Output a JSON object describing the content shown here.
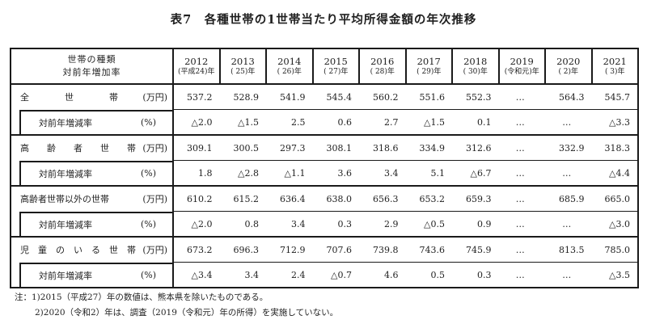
{
  "title": "表7　各種世帯の1世帯当たり平均所得金額の年次推移",
  "table": {
    "header": {
      "label_line1": "世帯の種類",
      "label_line2": "対前年増加率",
      "years": [
        {
          "year": "2012",
          "era": "(平成24)年"
        },
        {
          "year": "2013",
          "era": "( 25)年"
        },
        {
          "year": "2014",
          "era": "( 26)年"
        },
        {
          "year": "2015",
          "era": "( 27)年"
        },
        {
          "year": "2016",
          "era": "( 28)年"
        },
        {
          "year": "2017",
          "era": "( 29)年"
        },
        {
          "year": "2018",
          "era": "( 30)年"
        },
        {
          "year": "2019",
          "era": "(令和元)年"
        },
        {
          "year": "2020",
          "era": "( 2)年"
        },
        {
          "year": "2021",
          "era": "( 3)年"
        }
      ]
    },
    "groups": [
      {
        "label": "全　　　　世　　　　帯",
        "unit": "(万円)",
        "values": [
          "537.2",
          "528.9",
          "541.9",
          "545.4",
          "560.2",
          "551.6",
          "552.3",
          "…",
          "564.3",
          "545.7"
        ],
        "rate_label": "対前年増減率",
        "rate_unit": "(%)",
        "rate_values": [
          "△2.0",
          "△1.5",
          "2.5",
          "0.6",
          "2.7",
          "△1.5",
          "0.1",
          "…",
          "…",
          "△3.3"
        ]
      },
      {
        "label": "高　　齢　　者　　世　　帯",
        "unit": "(万円)",
        "values": [
          "309.1",
          "300.5",
          "297.3",
          "308.1",
          "318.6",
          "334.9",
          "312.6",
          "…",
          "332.9",
          "318.3"
        ],
        "rate_label": "対前年増減率",
        "rate_unit": "(%)",
        "rate_values": [
          "1.8",
          "△2.8",
          "△1.1",
          "3.6",
          "3.4",
          "5.1",
          "△6.7",
          "…",
          "…",
          "△4.4"
        ]
      },
      {
        "label": "高齢者世帯以外の世帯",
        "unit": "(万円)",
        "values": [
          "610.2",
          "615.2",
          "636.4",
          "638.0",
          "656.3",
          "653.2",
          "659.3",
          "…",
          "685.9",
          "665.0"
        ],
        "rate_label": "対前年増減率",
        "rate_unit": "(%)",
        "rate_values": [
          "△2.0",
          "0.8",
          "3.4",
          "0.3",
          "2.9",
          "△0.5",
          "0.9",
          "…",
          "…",
          "△3.0"
        ]
      },
      {
        "label": "児　童　の　い　る　世　帯",
        "unit": "(万円)",
        "values": [
          "673.2",
          "696.3",
          "712.9",
          "707.6",
          "739.8",
          "743.6",
          "745.9",
          "…",
          "813.5",
          "785.0"
        ],
        "rate_label": "対前年増減率",
        "rate_unit": "(%)",
        "rate_values": [
          "△3.4",
          "3.4",
          "2.4",
          "△0.7",
          "4.6",
          "0.5",
          "0.3",
          "…",
          "…",
          "△3.5"
        ]
      }
    ]
  },
  "notes": {
    "prefix": "注：",
    "items": [
      "1)2015（平成27）年の数値は、熊本県を除いたものである。",
      "2)2020（令和2）年は、調査（2019（令和元）年の所得）を実施していない。"
    ]
  }
}
